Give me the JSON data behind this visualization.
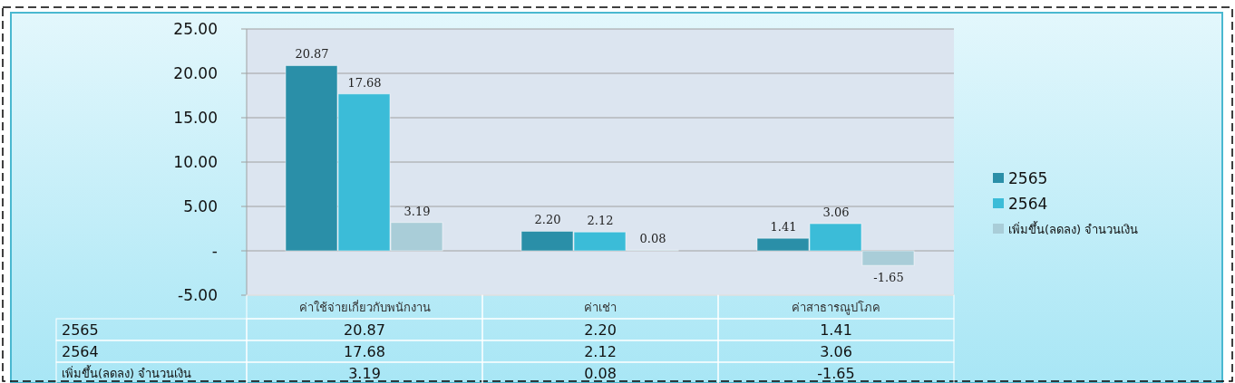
{
  "chart_data": {
    "type": "bar",
    "categories": [
      "ค่าใช้จ่ายเกี่ยวกับพนักงาน",
      "ค่าเช่า",
      "ค่าสาธารณูปโภค"
    ],
    "series": [
      {
        "name": "2565",
        "color": "#2a8fa8",
        "values": [
          20.87,
          2.2,
          1.41
        ],
        "value_labels": [
          "20.87",
          "2.20",
          "1.41"
        ]
      },
      {
        "name": "2564",
        "color": "#3bbcd8",
        "values": [
          17.68,
          2.12,
          3.06
        ],
        "value_labels": [
          "17.68",
          "2.12",
          "3.06"
        ]
      },
      {
        "name": "เพิ่มขึ้น(ลดลง) จำนวนเงิน",
        "color": "#a9cdd8",
        "values": [
          3.19,
          0.08,
          -1.65
        ],
        "value_labels": [
          "3.19",
          "0.08",
          "-1.65"
        ]
      }
    ],
    "ylim": [
      -5,
      25
    ],
    "yticks": [
      {
        "value": -5,
        "label": "-5.00"
      },
      {
        "value": 0,
        "label": "-"
      },
      {
        "value": 5,
        "label": "5.00"
      },
      {
        "value": 10,
        "label": "10.00"
      },
      {
        "value": 15,
        "label": "15.00"
      },
      {
        "value": 20,
        "label": "20.00"
      },
      {
        "value": 25,
        "label": "25.00"
      }
    ],
    "grid": "y",
    "legend": "right"
  }
}
